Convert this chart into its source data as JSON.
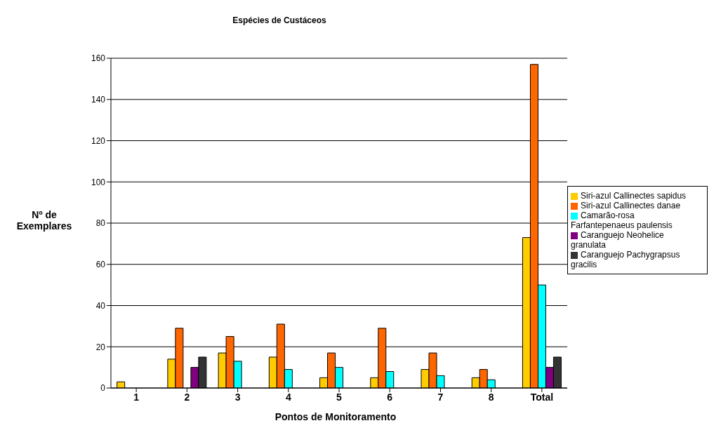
{
  "chart_data": {
    "type": "bar",
    "title": "Espécies de Custáceos",
    "xlabel": "Pontos de Monitoramento",
    "ylabel": "Nº de Exemplares",
    "categories": [
      "1",
      "2",
      "3",
      "4",
      "5",
      "6",
      "7",
      "8",
      "Total"
    ],
    "series": [
      {
        "name": "Siri-azul Callinectes sapidus",
        "color": "#ffcc00",
        "values": [
          3,
          14,
          17,
          15,
          5,
          5,
          9,
          5,
          73
        ]
      },
      {
        "name": "Siri-azul Callinectes danae",
        "color": "#ff6600",
        "values": [
          0,
          29,
          25,
          31,
          17,
          29,
          17,
          9,
          157
        ]
      },
      {
        "name": "Camarão-rosa Farfantepenaeus paulensis",
        "color": "#00ffff",
        "values": [
          0,
          0,
          13,
          9,
          10,
          8,
          6,
          4,
          50
        ]
      },
      {
        "name": "Caranguejo Neohelice granulata",
        "color": "#800080",
        "values": [
          0,
          10,
          0,
          0,
          0,
          0,
          0,
          0,
          10
        ]
      },
      {
        "name": "Caranguejo Pachygrapsus gracilis",
        "color": "#333333",
        "values": [
          0,
          15,
          0,
          0,
          0,
          0,
          0,
          0,
          15
        ]
      }
    ],
    "ylim": [
      0,
      160
    ],
    "yticks": [
      0,
      20,
      40,
      60,
      80,
      100,
      120,
      140,
      160
    ],
    "grid": "y",
    "legend": "right"
  }
}
